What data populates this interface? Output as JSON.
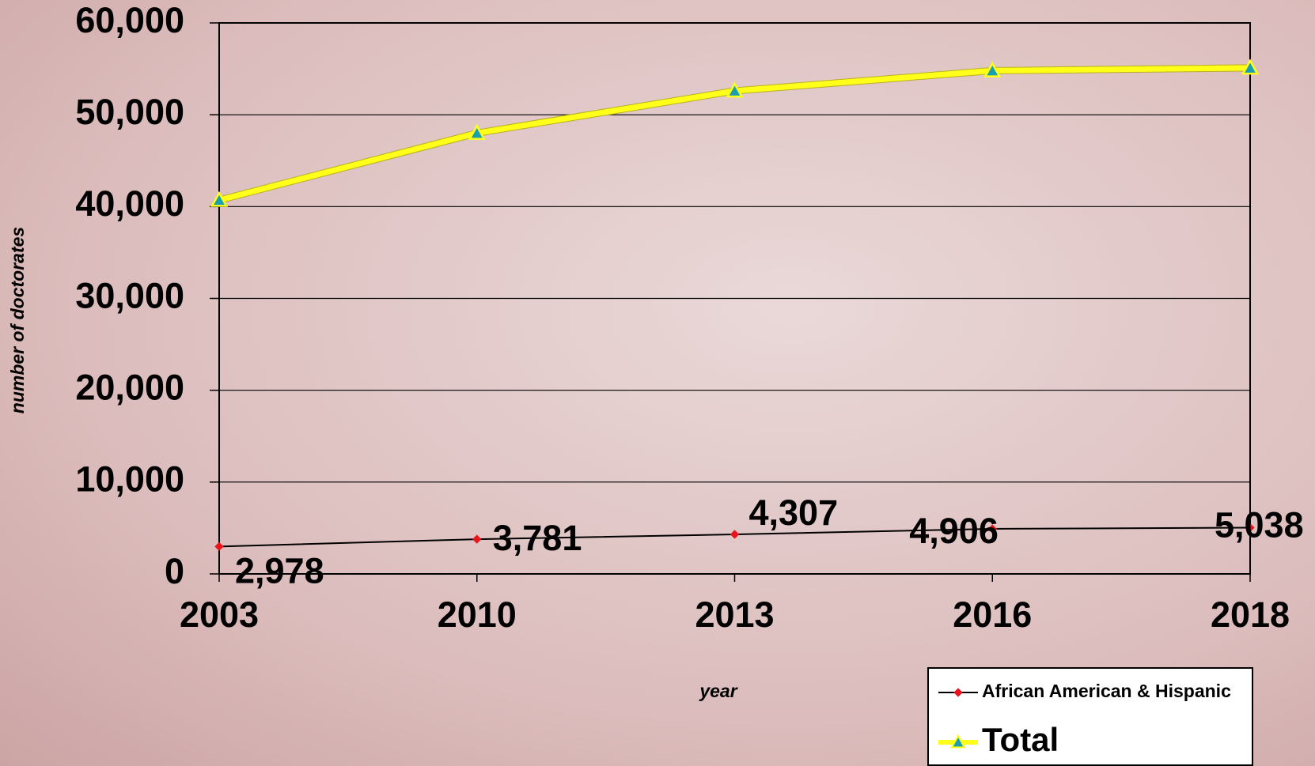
{
  "chart_data": {
    "type": "line",
    "x_label": "year",
    "y_label": "number of doctorates",
    "categories": [
      "2003",
      "2010",
      "2013",
      "2016",
      "2018"
    ],
    "series": [
      {
        "name": "African American & Hispanic",
        "color": "#000000",
        "marker_color": "#e8141b",
        "values": [
          2978,
          3781,
          4307,
          4906,
          5038
        ],
        "value_labels": [
          "2,978",
          "3,781",
          "4,307",
          "4,906",
          "5,038"
        ]
      },
      {
        "name": "Total",
        "color": "#ffff1a",
        "marker_color": "#1a9fb0",
        "values": [
          40700,
          48000,
          52600,
          54800,
          55100
        ]
      }
    ],
    "ylim": [
      0,
      60000
    ],
    "yticks": [
      0,
      {
        "value": 10000,
        "label": "10,000"
      },
      {
        "value": 20000,
        "label": "20,000"
      },
      {
        "value": 30000,
        "label": "30,000"
      },
      {
        "value": 40000,
        "label": "40,000"
      },
      {
        "value": 50000,
        "label": "50,000"
      },
      {
        "value": 60000,
        "label": "60,000"
      }
    ],
    "grid": true,
    "legend": "bottom-right"
  }
}
